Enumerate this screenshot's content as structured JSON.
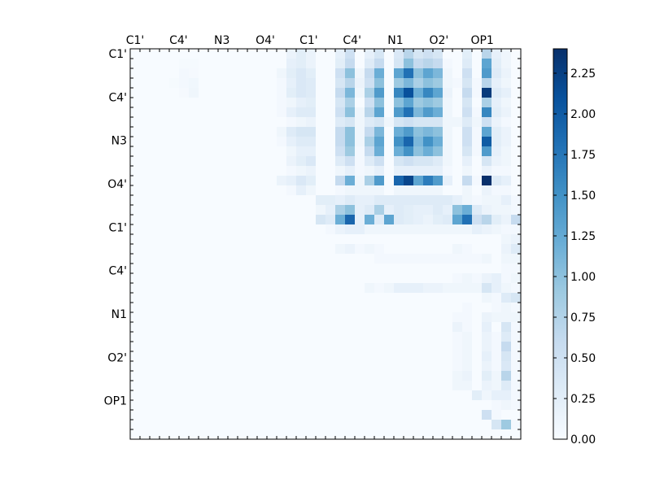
{
  "chart_data": {
    "type": "heatmap",
    "title": "",
    "xlabel": "",
    "ylabel": "",
    "grid": false,
    "colormap": "Blues",
    "n_rows": 40,
    "n_cols": 40,
    "x_tick_labels": [
      "C1'",
      "C4'",
      "N3",
      "O4'",
      "C1'",
      "C4'",
      "N1",
      "O2'",
      "OP1"
    ],
    "y_tick_labels": [
      "C1'",
      "C4'",
      "N3",
      "O4'",
      "C1'",
      "C4'",
      "N1",
      "O2'",
      "OP1"
    ],
    "colorbar": {
      "range": [
        0.0,
        2.4
      ],
      "tick_values": [
        0.0,
        0.25,
        0.5,
        0.75,
        1.0,
        1.25,
        1.5,
        1.75,
        2.0,
        2.25
      ],
      "tick_labels": [
        "0.00",
        "0.25",
        "0.50",
        "0.75",
        "1.00",
        "1.25",
        "1.50",
        "1.75",
        "2.00",
        "2.25"
      ]
    },
    "rows": [
      "0.00 0.00 0.00 0.00 0.00 0.00 0.00 0.00 0.00 0.00 0.00 0.00 0.00 0.00 0.00 0.00 0.15 0.25 0.15 0.00 0.00 0.20 0.50 0.00 0.20 0.40 0.00 0.35 0.70 0.40 0.50 0.40 0.00 0.00 0.25 0.00 0.70 0.20 0.10 0.00",
      "0.00 0.00 0.00 0.00 0.00 0.02 0.02 0.00 0.00 0.00 0.00 0.00 0.00 0.00 0.00 0.00 0.20 0.25 0.15 0.00 0.00 0.25 0.60 0.00 0.30 0.60 0.00 0.40 1.00 0.60 0.70 0.60 0.05 0.00 0.30 0.00 1.30 0.25 0.10 0.00",
      "0.00 0.00 0.00 0.00 0.00 0.05 0.03 0.00 0.00 0.00 0.00 0.00 0.00 0.00 0.00 0.10 0.25 0.35 0.25 0.00 0.00 0.50 1.00 0.10 0.60 1.20 0.00 1.30 1.80 1.00 1.30 1.10 0.10 0.00 0.50 0.00 1.40 0.30 0.15 0.00",
      "0.00 0.00 0.00 0.00 0.02 0.05 0.08 0.00 0.00 0.00 0.00 0.00 0.00 0.00 0.00 0.05 0.20 0.35 0.30 0.00 0.00 0.40 0.70 0.15 0.50 1.00 0.00 0.90 1.10 0.80 1.00 0.90 0.10 0.05 0.40 0.05 0.70 0.20 0.10 0.00",
      "0.00 0.00 0.00 0.00 0.00 0.03 0.10 0.00 0.00 0.00 0.00 0.00 0.00 0.00 0.00 0.05 0.25 0.35 0.30 0.00 0.00 0.60 1.10 0.10 0.80 1.40 0.00 1.60 2.10 1.20 1.60 1.30 0.15 0.00 0.60 0.05 2.30 0.30 0.20 0.00",
      "0.00 0.00 0.00 0.00 0.00 0.00 0.00 0.00 0.00 0.00 0.00 0.00 0.00 0.00 0.00 0.05 0.10 0.20 0.25 0.00 0.00 0.40 0.80 0.00 0.50 1.00 0.00 1.00 1.30 0.90 1.00 0.90 0.10 0.00 0.40 0.00 0.80 0.20 0.10 0.00",
      "0.00 0.00 0.00 0.00 0.00 0.00 0.00 0.00 0.00 0.00 0.00 0.00 0.00 0.00 0.00 0.05 0.20 0.30 0.30 0.00 0.00 0.50 1.00 0.10 0.70 1.30 0.00 1.40 1.80 1.10 1.40 1.20 0.10 0.00 0.50 0.05 1.60 0.25 0.15 0.00",
      "0.00 0.00 0.00 0.00 0.00 0.00 0.00 0.00 0.00 0.00 0.00 0.00 0.00 0.00 0.00 0.00 0.05 0.10 0.15 0.00 0.00 0.30 0.40 0.10 0.30 0.40 0.10 0.40 0.50 0.40 0.40 0.40 0.10 0.10 0.30 0.10 0.50 0.15 0.05 0.00",
      "0.00 0.00 0.00 0.00 0.00 0.00 0.00 0.00 0.00 0.00 0.00 0.00 0.00 0.00 0.00 0.10 0.30 0.40 0.40 0.00 0.00 0.60 1.00 0.10 0.60 1.10 0.00 1.20 1.40 1.00 1.10 1.00 0.10 0.00 0.50 0.05 1.30 0.25 0.15 0.00",
      "0.00 0.00 0.00 0.00 0.00 0.00 0.00 0.00 0.00 0.00 0.00 0.00 0.00 0.00 0.00 0.05 0.20 0.30 0.30 0.00 0.00 0.60 1.00 0.10 0.80 1.30 0.00 1.50 1.90 1.10 1.50 1.20 0.10 0.00 0.50 0.05 2.00 0.25 0.15 0.00",
      "0.00 0.00 0.00 0.00 0.00 0.00 0.00 0.00 0.00 0.00 0.00 0.00 0.00 0.00 0.00 0.00 0.10 0.20 0.20 0.00 0.00 0.50 0.90 0.05 0.60 1.20 0.00 1.20 1.50 1.00 1.20 1.00 0.10 0.00 0.40 0.05 1.40 0.20 0.10 0.00",
      "0.00 0.00 0.00 0.00 0.00 0.00 0.00 0.00 0.00 0.00 0.00 0.00 0.00 0.00 0.00 0.00 0.15 0.25 0.35 0.00 0.00 0.30 0.50 0.05 0.30 0.50 0.00 0.40 0.50 0.40 0.40 0.30 0.10 0.00 0.20 0.00 0.40 0.15 0.10 0.00",
      "0.00 0.00 0.00 0.00 0.00 0.00 0.00 0.00 0.00 0.00 0.00 0.00 0.00 0.00 0.00 0.00 0.05 0.10 0.15 0.00 0.00 0.10 0.20 0.05 0.10 0.20 0.00 0.20 0.20 0.20 0.20 0.20 0.05 0.00 0.10 0.00 0.15 0.05 0.05 0.00",
      "0.00 0.00 0.00 0.00 0.00 0.00 0.00 0.00 0.00 0.00 0.00 0.00 0.00 0.00 0.00 0.15 0.20 0.35 0.25 0.00 0.00 0.60 1.20 0.10 0.80 1.40 0.00 1.90 2.20 1.30 1.70 1.40 0.20 0.00 0.60 0.05 2.40 0.30 0.20 0.00",
      "0.00 0.00 0.00 0.00 0.00 0.00 0.00 0.00 0.00 0.00 0.00 0.00 0.00 0.00 0.00 0.00 0.05 0.20 0.10 0.00 0.00 0.05 0.10 0.10 0.10 0.10 0.00 0.10 0.10 0.10 0.10 0.10 0.00 0.00 0.10 0.00 0.15 0.05 0.05 0.00",
      "0.00 0.00 0.00 0.00 0.00 0.00 0.00 0.00 0.00 0.00 0.00 0.00 0.00 0.00 0.00 0.00 0.00 0.00 0.00 0.25 0.25 0.20 0.30 0.20 0.20 0.30 0.30 0.30 0.30 0.30 0.30 0.30 0.30 0.20 0.10 0.05 0.10 0.10 0.20 0.05",
      "0.00 0.00 0.00 0.00 0.00 0.00 0.00 0.00 0.00 0.00 0.00 0.00 0.00 0.00 0.00 0.00 0.00 0.00 0.00 0.10 0.20 0.80 1.00 0.20 0.30 0.80 0.20 0.30 0.25 0.20 0.20 0.30 0.20 1.00 1.20 0.30 0.15 0.10 0.10 0.05",
      "0.00 0.00 0.00 0.00 0.00 0.00 0.00 0.00 0.00 0.00 0.00 0.00 0.00 0.00 0.00 0.00 0.00 0.00 0.00 0.40 0.30 1.20 1.90 0.20 1.20 0.30 1.30 0.30 0.25 0.20 0.15 0.25 0.30 1.30 1.80 0.50 0.70 0.25 0.15 0.60",
      "0.00 0.00 0.00 0.00 0.00 0.00 0.00 0.00 0.00 0.00 0.00 0.00 0.00 0.00 0.00 0.00 0.00 0.00 0.00 0.00 0.05 0.15 0.20 0.20 0.10 0.10 0.10 0.10 0.10 0.10 0.10 0.10 0.10 0.10 0.10 0.20 0.15 0.10 0.05 0.05",
      "0.00 0.00 0.00 0.00 0.00 0.00 0.00 0.00 0.00 0.00 0.00 0.00 0.00 0.00 0.00 0.00 0.00 0.00 0.00 0.00 0.00 0.00 0.00 0.00 0.00 0.00 0.00 0.00 0.00 0.00 0.00 0.00 0.00 0.00 0.00 0.00 0.00 0.00 0.10 0.15",
      "0.00 0.00 0.00 0.00 0.00 0.00 0.00 0.00 0.00 0.00 0.00 0.00 0.00 0.00 0.00 0.00 0.00 0.00 0.00 0.00 0.00 0.10 0.15 0.05 0.10 0.05 0.00 0.00 0.00 0.00 0.00 0.00 0.00 0.10 0.05 0.00 0.00 0.00 0.15 0.30",
      "0.00 0.00 0.00 0.00 0.00 0.00 0.00 0.00 0.00 0.00 0.00 0.00 0.00 0.00 0.00 0.00 0.00 0.00 0.00 0.00 0.00 0.00 0.00 0.00 0.00 0.05 0.05 0.05 0.05 0.05 0.05 0.05 0.05 0.05 0.05 0.05 0.10 0.00 0.10 0.10",
      "0.00 0.00 0.00 0.00 0.00 0.00 0.00 0.00 0.00 0.00 0.00 0.00 0.00 0.00 0.00 0.00 0.00 0.00 0.00 0.00 0.00 0.00 0.00 0.00 0.00 0.00 0.00 0.00 0.00 0.00 0.00 0.00 0.00 0.00 0.00 0.00 0.00 0.00 0.05 0.05",
      "0.00 0.00 0.00 0.00 0.00 0.00 0.00 0.00 0.00 0.00 0.00 0.00 0.00 0.00 0.00 0.00 0.00 0.00 0.00 0.00 0.00 0.00 0.00 0.00 0.00 0.00 0.00 0.00 0.00 0.00 0.00 0.00 0.00 0.05 0.10 0.05 0.15 0.20 0.05 0.10",
      "0.00 0.00 0.00 0.00 0.00 0.00 0.00 0.00 0.00 0.00 0.00 0.00 0.00 0.00 0.00 0.00 0.00 0.00 0.00 0.00 0.00 0.00 0.00 0.00 0.10 0.05 0.10 0.20 0.20 0.20 0.15 0.15 0.10 0.10 0.10 0.10 0.40 0.20 0.10 0.05",
      "0.00 0.00 0.00 0.00 0.00 0.00 0.00 0.00 0.00 0.00 0.00 0.00 0.00 0.00 0.00 0.00 0.00 0.00 0.00 0.00 0.00 0.00 0.00 0.00 0.00 0.00 0.00 0.00 0.00 0.00 0.00 0.00 0.00 0.00 0.00 0.00 0.10 0.05 0.30 0.40",
      "0.00 0.00 0.00 0.00 0.00 0.00 0.00 0.00 0.00 0.00 0.00 0.00 0.00 0.00 0.00 0.00 0.00 0.00 0.00 0.00 0.00 0.00 0.00 0.00 0.00 0.00 0.00 0.00 0.00 0.00 0.00 0.00 0.00 0.00 0.05 0.00 0.00 0.05 0.10 0.05",
      "0.00 0.00 0.00 0.00 0.00 0.00 0.00 0.00 0.00 0.00 0.00 0.00 0.00 0.00 0.00 0.00 0.00 0.00 0.00 0.00 0.00 0.00 0.00 0.00 0.00 0.00 0.00 0.00 0.00 0.00 0.00 0.00 0.00 0.05 0.05 0.00 0.15 0.10 0.10 0.10",
      "0.00 0.00 0.00 0.00 0.00 0.00 0.00 0.00 0.00 0.00 0.00 0.00 0.00 0.00 0.00 0.00 0.00 0.00 0.00 0.00 0.00 0.00 0.00 0.00 0.00 0.00 0.00 0.00 0.00 0.00 0.00 0.00 0.00 0.15 0.05 0.00 0.20 0.00 0.40 0.05",
      "0.00 0.00 0.00 0.00 0.00 0.00 0.00 0.00 0.00 0.00 0.00 0.00 0.00 0.00 0.00 0.00 0.00 0.00 0.00 0.00 0.00 0.00 0.00 0.00 0.00 0.00 0.00 0.00 0.00 0.00 0.00 0.00 0.00 0.05 0.10 0.00 0.15 0.05 0.30 0.05",
      "0.00 0.00 0.00 0.00 0.00 0.00 0.00 0.00 0.00 0.00 0.00 0.00 0.00 0.00 0.00 0.00 0.00 0.00 0.00 0.00 0.00 0.00 0.00 0.00 0.00 0.00 0.00 0.00 0.00 0.00 0.00 0.00 0.00 0.05 0.10 0.00 0.15 0.05 0.60 0.05",
      "0.00 0.00 0.00 0.00 0.00 0.00 0.00 0.00 0.00 0.00 0.00 0.00 0.00 0.00 0.00 0.00 0.00 0.00 0.00 0.00 0.00 0.00 0.00 0.00 0.00 0.00 0.00 0.00 0.00 0.00 0.00 0.00 0.00 0.05 0.10 0.00 0.20 0.05 0.40 0.05",
      "0.00 0.00 0.00 0.00 0.00 0.00 0.00 0.00 0.00 0.00 0.00 0.00 0.00 0.00 0.00 0.00 0.00 0.00 0.00 0.00 0.00 0.00 0.00 0.00 0.00 0.00 0.00 0.00 0.00 0.00 0.00 0.00 0.00 0.05 0.10 0.00 0.15 0.05 0.35 0.05",
      "0.00 0.00 0.00 0.00 0.00 0.00 0.00 0.00 0.00 0.00 0.00 0.00 0.00 0.00 0.00 0.00 0.00 0.00 0.00 0.00 0.00 0.00 0.00 0.00 0.00 0.00 0.00 0.00 0.00 0.00 0.00 0.00 0.00 0.10 0.15 0.00 0.25 0.10 0.70 0.05",
      "0.00 0.00 0.00 0.00 0.00 0.00 0.00 0.00 0.00 0.00 0.00 0.00 0.00 0.00 0.00 0.00 0.00 0.00 0.00 0.00 0.00 0.00 0.00 0.00 0.00 0.00 0.00 0.00 0.00 0.00 0.00 0.00 0.00 0.10 0.10 0.00 0.15 0.10 0.30 0.05",
      "0.00 0.00 0.00 0.00 0.00 0.00 0.00 0.00 0.00 0.00 0.00 0.00 0.00 0.00 0.00 0.00 0.00 0.00 0.00 0.00 0.00 0.00 0.00 0.00 0.00 0.00 0.00 0.00 0.00 0.00 0.00 0.00 0.00 0.00 0.00 0.25 0.10 0.20 0.20 0.05",
      "0.00 0.00 0.00 0.00 0.00 0.00 0.00 0.00 0.00 0.00 0.00 0.00 0.00 0.00 0.00 0.00 0.00 0.00 0.00 0.00 0.00 0.00 0.00 0.00 0.00 0.00 0.00 0.00 0.00 0.00 0.00 0.00 0.00 0.00 0.00 0.00 0.00 0.05 0.10 0.05",
      "0.00 0.00 0.00 0.00 0.00 0.00 0.00 0.00 0.00 0.00 0.00 0.00 0.00 0.00 0.00 0.00 0.00 0.00 0.00 0.00 0.00 0.00 0.00 0.00 0.00 0.00 0.00 0.00 0.00 0.00 0.00 0.00 0.00 0.00 0.00 0.00 0.50 0.05 0.00 0.00",
      "0.00 0.00 0.00 0.00 0.00 0.00 0.00 0.00 0.00 0.00 0.00 0.00 0.00 0.00 0.00 0.00 0.00 0.00 0.00 0.00 0.00 0.00 0.00 0.00 0.00 0.00 0.00 0.00 0.00 0.00 0.00 0.00 0.00 0.00 0.00 0.00 0.00 0.40 0.90 0.05",
      "0.00 0.00 0.00 0.00 0.00 0.00 0.00 0.00 0.00 0.00 0.00 0.00 0.00 0.00 0.00 0.00 0.00 0.00 0.00 0.00 0.00 0.00 0.00 0.00 0.00 0.00 0.00 0.00 0.00 0.00 0.00 0.00 0.00 0.00 0.00 0.00 0.00 0.00 0.00 0.00"
    ]
  }
}
